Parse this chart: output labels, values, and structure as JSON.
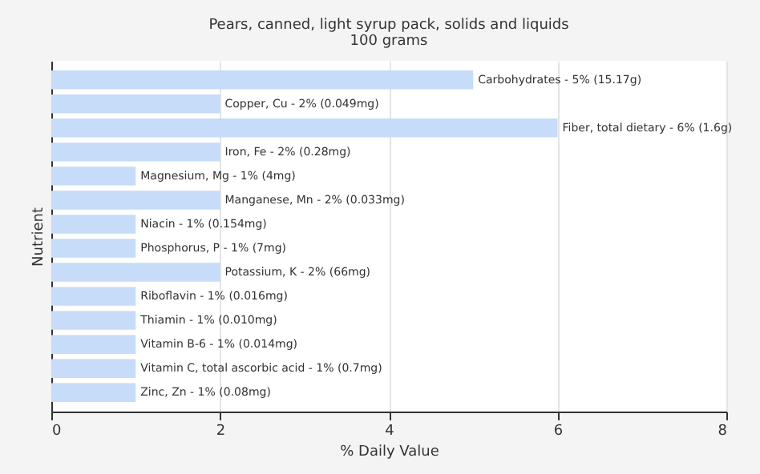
{
  "chart_data": {
    "type": "bar",
    "orientation": "horizontal",
    "title": "Pears, canned, light syrup pack, solids and liquids",
    "subtitle": "100 grams",
    "xlabel": "% Daily Value",
    "ylabel": "Nutrient",
    "categories": [
      "Carbohydrates - 5% (15.17g)",
      "Copper, Cu - 2% (0.049mg)",
      "Fiber, total dietary - 6% (1.6g)",
      "Iron, Fe - 2% (0.28mg)",
      "Magnesium, Mg - 1% (4mg)",
      "Manganese, Mn - 2% (0.033mg)",
      "Niacin - 1% (0.154mg)",
      "Phosphorus, P - 1% (7mg)",
      "Potassium, K - 2% (66mg)",
      "Riboflavin - 1% (0.016mg)",
      "Thiamin - 1% (0.010mg)",
      "Vitamin B-6 - 1% (0.014mg)",
      "Vitamin C, total ascorbic acid - 1% (0.7mg)",
      "Zinc, Zn - 1% (0.08mg)"
    ],
    "values": [
      5,
      2,
      6,
      2,
      1,
      2,
      1,
      1,
      2,
      1,
      1,
      1,
      1,
      1
    ],
    "color": "#c6dcf8",
    "xlim": [
      0,
      8
    ],
    "xticks": [
      0,
      2,
      4,
      6,
      8
    ],
    "grid": "x",
    "tick_labels": "x"
  }
}
